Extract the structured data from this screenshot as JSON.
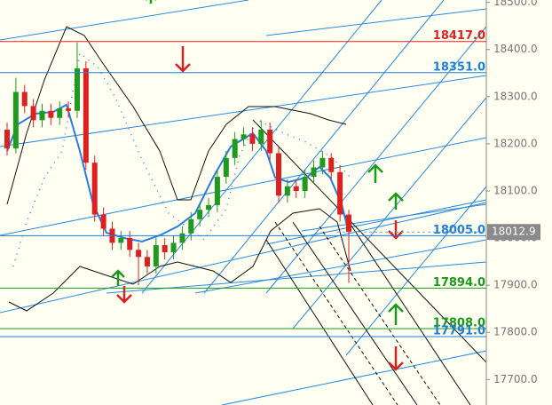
{
  "chart_data": {
    "type": "candlestick",
    "open": [
      18230,
      18190,
      18310,
      18280,
      18250,
      18270,
      18255,
      18275,
      18270,
      18360,
      18160,
      18050,
      18020,
      17990,
      18000,
      17975,
      17960,
      17940,
      17985,
      17970,
      17990,
      18010,
      18040,
      18060,
      18070,
      18130,
      18170,
      18210,
      18220,
      18200,
      18230,
      18180,
      18090,
      18110,
      18100,
      18130,
      18150,
      18170,
      18140,
      18050
    ],
    "high": [
      18245,
      18340,
      18325,
      18295,
      18285,
      18285,
      18290,
      18290,
      18415,
      18375,
      18175,
      18065,
      18035,
      18015,
      18015,
      17990,
      17975,
      18000,
      18000,
      18005,
      18025,
      18055,
      18075,
      18085,
      18145,
      18185,
      18225,
      18235,
      18235,
      18250,
      18245,
      18195,
      18125,
      18125,
      18145,
      18165,
      18185,
      18180,
      18155,
      18060
    ],
    "low": [
      18175,
      18180,
      18265,
      18235,
      18235,
      18240,
      18240,
      18255,
      18255,
      18145,
      18035,
      18005,
      17975,
      17975,
      17960,
      17900,
      17925,
      17925,
      17955,
      17955,
      17975,
      17995,
      18025,
      18045,
      18055,
      18115,
      18155,
      18195,
      18185,
      18185,
      18165,
      18075,
      18075,
      18085,
      18085,
      18115,
      18135,
      18125,
      18035,
      17905
    ],
    "close": [
      18190,
      18310,
      18280,
      18250,
      18270,
      18255,
      18275,
      18270,
      18360,
      18160,
      18050,
      18020,
      17990,
      18000,
      17975,
      17960,
      17940,
      17985,
      17970,
      17990,
      18010,
      18040,
      18060,
      18070,
      18130,
      18170,
      18210,
      18220,
      18200,
      18230,
      18180,
      18090,
      18110,
      18100,
      18130,
      18150,
      18170,
      18140,
      18050,
      18012.9
    ],
    "up_color": "#1f9a1f",
    "down_color": "#dd2020",
    "ylim": [
      17646,
      18505
    ],
    "yticks": [
      {
        "value": 17700,
        "label": "17700.0"
      },
      {
        "value": 17800,
        "label": "17800.0"
      },
      {
        "value": 17900,
        "label": "17900.0"
      },
      {
        "value": 18000,
        "label": "18000.0"
      },
      {
        "value": 18100,
        "label": "18100.0"
      },
      {
        "value": 18200,
        "label": "18200.0"
      },
      {
        "value": 18300,
        "label": "18300.0"
      },
      {
        "value": 18400,
        "label": "18400.0"
      },
      {
        "value": 18500,
        "label": "18500.0"
      }
    ],
    "levels": [
      {
        "value": 18417,
        "label": "18417.0",
        "color": "#e02020"
      },
      {
        "value": 18351,
        "label": "18351.0",
        "color": "#1e7fd8"
      },
      {
        "value": 18005,
        "label": "18005.0",
        "color": "#1e7fd8"
      },
      {
        "value": 17894,
        "label": "17894.0",
        "color": "#1a9a1a"
      },
      {
        "value": 17808,
        "label": "17808.0",
        "color": "#1a9a1a"
      },
      {
        "value": 17791,
        "label": "17791.0",
        "color": "#1e7fd8"
      }
    ],
    "last_price": {
      "value": 18012.9,
      "label": "18012.9"
    }
  }
}
